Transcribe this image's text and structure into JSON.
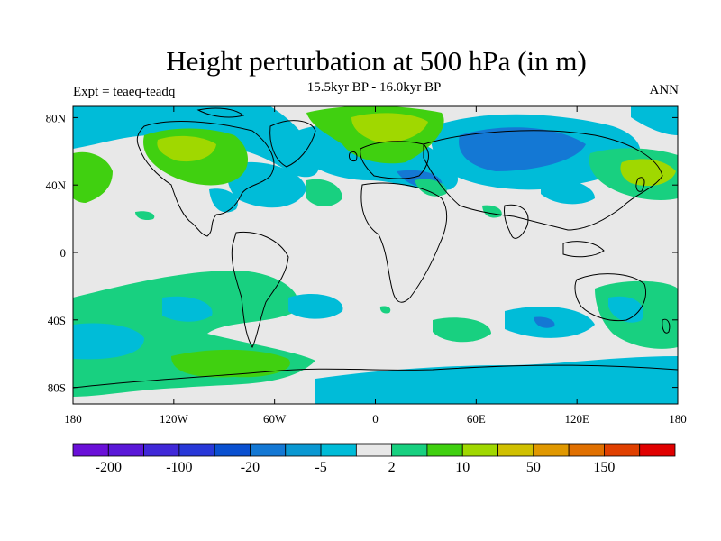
{
  "title": "Height perturbation at 500 hPa (in m)",
  "subtitle": "15.5kyr BP - 16.0kyr BP",
  "left_label": "Expt = teaeq-teadq",
  "right_label": "ANN",
  "map": {
    "lon_range": [
      -180,
      180
    ],
    "lat_range": [
      -90,
      90
    ],
    "lat_ticks": [
      {
        "value": 80,
        "label": "80N"
      },
      {
        "value": 40,
        "label": "40N"
      },
      {
        "value": 0,
        "label": "0"
      },
      {
        "value": -40,
        "label": "40S"
      },
      {
        "value": -80,
        "label": "80S"
      }
    ],
    "lon_ticks": [
      {
        "value": -180,
        "label": "180"
      },
      {
        "value": -120,
        "label": "120W"
      },
      {
        "value": -60,
        "label": "60W"
      },
      {
        "value": 0,
        "label": "0"
      },
      {
        "value": 60,
        "label": "60E"
      },
      {
        "value": 120,
        "label": "120E"
      },
      {
        "value": 180,
        "label": "180"
      }
    ],
    "background_color": "#e8e8e8"
  },
  "colorbar": {
    "colors": [
      "#6a10d8",
      "#5a18d8",
      "#4028d8",
      "#2838d8",
      "#0a50d0",
      "#1478d4",
      "#0a98d2",
      "#00bcd8",
      "#e8e8e8",
      "#18d080",
      "#40d010",
      "#a0d800",
      "#d0c000",
      "#e09800",
      "#e07000",
      "#e04000",
      "#e00000"
    ],
    "labels": [
      {
        "after_box": 1,
        "text": "-200"
      },
      {
        "after_box": 3,
        "text": "-100"
      },
      {
        "after_box": 5,
        "text": "-20"
      },
      {
        "after_box": 7,
        "text": "-5"
      },
      {
        "after_box": 9,
        "text": "2"
      },
      {
        "after_box": 11,
        "text": "10"
      },
      {
        "after_box": 13,
        "text": "50"
      },
      {
        "after_box": 15,
        "text": "150"
      }
    ]
  }
}
